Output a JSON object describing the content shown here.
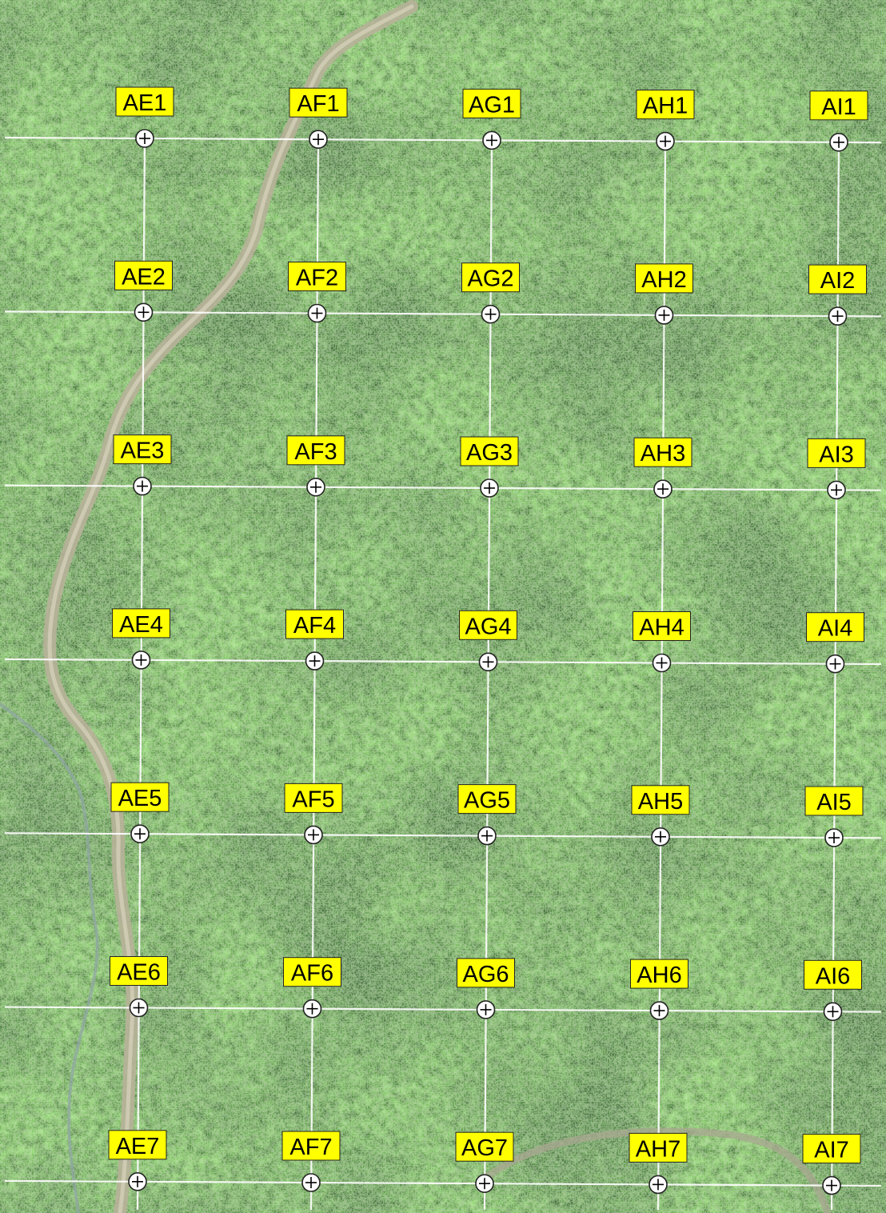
{
  "map": {
    "type": "aerial-imagery-grid",
    "colors": {
      "label_fill": "#ffff00",
      "label_text": "#000000",
      "grid_line": "#ffffff",
      "forest_dark": "#1d3a17",
      "forest_light": "#5f8a3e",
      "road": "#b9b39a"
    },
    "columns": [
      "AE",
      "AF",
      "AG",
      "AH",
      "AI"
    ],
    "rows": [
      "1",
      "2",
      "3",
      "4",
      "5",
      "6",
      "7"
    ],
    "points": [
      {
        "id": "AE1"
      },
      {
        "id": "AF1"
      },
      {
        "id": "AG1"
      },
      {
        "id": "AH1"
      },
      {
        "id": "AI1"
      },
      {
        "id": "AE2"
      },
      {
        "id": "AF2"
      },
      {
        "id": "AG2"
      },
      {
        "id": "AH2"
      },
      {
        "id": "AI2"
      },
      {
        "id": "AE3"
      },
      {
        "id": "AF3"
      },
      {
        "id": "AG3"
      },
      {
        "id": "AH3"
      },
      {
        "id": "AI3"
      },
      {
        "id": "AE4"
      },
      {
        "id": "AF4"
      },
      {
        "id": "AG4"
      },
      {
        "id": "AH4"
      },
      {
        "id": "AI4"
      },
      {
        "id": "AE5"
      },
      {
        "id": "AF5"
      },
      {
        "id": "AG5"
      },
      {
        "id": "AH5"
      },
      {
        "id": "AI5"
      },
      {
        "id": "AE6"
      },
      {
        "id": "AF6"
      },
      {
        "id": "AG6"
      },
      {
        "id": "AH6"
      },
      {
        "id": "AI6"
      },
      {
        "id": "AE7"
      },
      {
        "id": "AF7"
      },
      {
        "id": "AG7"
      },
      {
        "id": "AH7"
      },
      {
        "id": "AI7"
      }
    ]
  }
}
